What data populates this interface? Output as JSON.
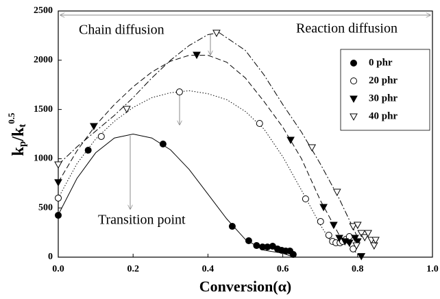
{
  "chart_data": {
    "type": "scatter",
    "x_label": "Conversion(α)",
    "y_label_parts": [
      "k",
      "p",
      "/k",
      "t",
      "0.5"
    ],
    "annotations": [
      "Chain diffusion",
      "Reaction diffusion",
      "Transition point"
    ],
    "xlim": [
      0,
      1
    ],
    "ylim": [
      0,
      2500
    ],
    "xticks": [
      {
        "value": 0,
        "label": "0.0"
      },
      {
        "value": 0.2,
        "label": "0.2"
      },
      {
        "value": 0.4,
        "label": "0.4"
      },
      {
        "value": 0.6,
        "label": "0.6"
      },
      {
        "value": 0.8,
        "label": "0.8"
      },
      {
        "value": 1,
        "label": "1.0"
      }
    ],
    "yticks": [
      0,
      500,
      1000,
      1500,
      2000,
      2500
    ],
    "legend": "upper right",
    "series": [
      {
        "name": "0 phr",
        "color": "#000000",
        "marker": "circle",
        "filled": true,
        "linestyle": "solid",
        "x": [
          0,
          0.08,
          0.28,
          0.465,
          0.509,
          0.53,
          0.546,
          0.559,
          0.573,
          0.586,
          0.597,
          0.608,
          0.619,
          0.628
        ],
        "values": [
          425,
          1086,
          1149,
          313,
          167,
          118,
          104,
          104,
          111,
          84,
          70,
          63,
          63,
          28
        ],
        "fit_x": [
          0,
          0.05,
          0.1,
          0.15,
          0.2,
          0.25,
          0.3,
          0.35,
          0.4,
          0.45,
          0.5,
          0.55,
          0.6,
          0.63
        ],
        "fit_y": [
          430,
          800,
          1060,
          1210,
          1250,
          1210,
          1090,
          890,
          640,
          390,
          180,
          70,
          40,
          0
        ]
      },
      {
        "name": "20 phr",
        "color": "#000000",
        "marker": "circle",
        "filled": false,
        "linestyle": "dotted",
        "x": [
          0,
          0.115,
          0.324,
          0.538,
          0.661,
          0.701,
          0.723,
          0.733,
          0.742,
          0.753,
          0.76,
          0.769,
          0.778,
          0.788
        ],
        "values": [
          600,
          1226,
          1678,
          1358,
          592,
          362,
          223,
          160,
          146,
          146,
          160,
          181,
          209,
          84
        ],
        "fit_x": [
          0,
          0.05,
          0.1,
          0.15,
          0.2,
          0.25,
          0.3,
          0.35,
          0.4,
          0.45,
          0.5,
          0.55,
          0.6,
          0.65,
          0.7,
          0.73
        ],
        "fit_y": [
          600,
          950,
          1200,
          1380,
          1520,
          1620,
          1670,
          1690,
          1660,
          1600,
          1480,
          1300,
          1020,
          680,
          330,
          150
        ]
      },
      {
        "name": "30 phr",
        "color": "#000000",
        "marker": "triangle-down",
        "filled": true,
        "linestyle": "dashed",
        "x": [
          0,
          0.095,
          0.37,
          0.621,
          0.709,
          0.736,
          0.751,
          0.766,
          0.778,
          0.793,
          0.8,
          0.81
        ],
        "values": [
          760,
          1330,
          2054,
          1191,
          508,
          327,
          195,
          160,
          146,
          195,
          160,
          10
        ],
        "fit_x": [
          0,
          0.05,
          0.1,
          0.15,
          0.2,
          0.25,
          0.3,
          0.35,
          0.4,
          0.45,
          0.5,
          0.55,
          0.6,
          0.65,
          0.7,
          0.75,
          0.8,
          0.81
        ],
        "fit_y": [
          760,
          1080,
          1340,
          1550,
          1730,
          1880,
          1990,
          2050,
          2050,
          1980,
          1820,
          1580,
          1320,
          1000,
          580,
          230,
          30,
          0
        ]
      },
      {
        "name": "40 phr",
        "color": "#000000",
        "marker": "triangle-down",
        "filled": false,
        "linestyle": "dashdot",
        "x": [
          0,
          0.183,
          0.423,
          0.678,
          0.745,
          0.788,
          0.797,
          0.8,
          0.81,
          0.819,
          0.828,
          0.837,
          0.844,
          0.848
        ],
        "values": [
          940,
          1504,
          2277,
          1114,
          662,
          313,
          118,
          327,
          244,
          202,
          244,
          174,
          118,
          174
        ],
        "fit_x": [
          0,
          0.05,
          0.1,
          0.15,
          0.2,
          0.25,
          0.3,
          0.35,
          0.4,
          0.43,
          0.5,
          0.55,
          0.6,
          0.65,
          0.7,
          0.75,
          0.8
        ],
        "fit_y": [
          940,
          1120,
          1280,
          1440,
          1620,
          1820,
          2000,
          2150,
          2260,
          2280,
          2100,
          1850,
          1550,
          1270,
          950,
          600,
          200
        ]
      }
    ]
  }
}
